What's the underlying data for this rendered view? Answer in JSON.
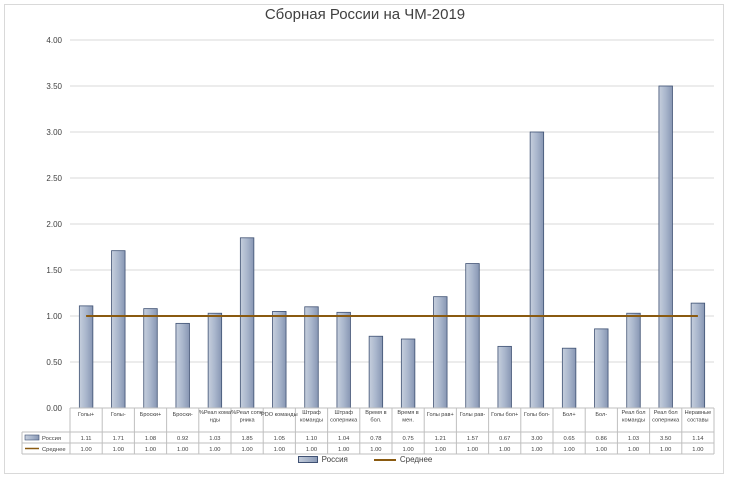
{
  "chart_data": {
    "type": "bar",
    "title": "Сборная России на ЧМ-2019",
    "categories": [
      "Голы+",
      "Голы-",
      "Броски+",
      "Броски-",
      "%Реал кома нды",
      "%Реал сопе рника",
      "PDO команды",
      "Штраф команды",
      "Штраф соперника",
      "Время в бол.",
      "Время в мен.",
      "Голы рав+",
      "Голы рав-",
      "Голы бол+",
      "Голы бол-",
      "Бол+",
      "Бол-",
      "Реал бол команды",
      "Реал бол соперника",
      "Неравные составы"
    ],
    "series": [
      {
        "name": "Россия",
        "type": "bar",
        "values": [
          1.11,
          1.71,
          1.08,
          0.92,
          1.03,
          1.85,
          1.05,
          1.1,
          1.04,
          0.78,
          0.75,
          1.21,
          1.57,
          0.67,
          3.0,
          0.65,
          0.86,
          1.03,
          3.5,
          1.14
        ],
        "labels": [
          "1.11",
          "1.71",
          "1.08",
          "0.92",
          "1.03",
          "1.85",
          "1.05",
          "1.10",
          "1.04",
          "0.78",
          "0.75",
          "1.21",
          "1.57",
          "0.67",
          "3.00",
          "0.65",
          "0.86",
          "1.03",
          "3.50",
          "1.14"
        ]
      },
      {
        "name": "Среднее",
        "type": "line",
        "values": [
          1.0,
          1.0,
          1.0,
          1.0,
          1.0,
          1.0,
          1.0,
          1.0,
          1.0,
          1.0,
          1.0,
          1.0,
          1.0,
          1.0,
          1.0,
          1.0,
          1.0,
          1.0,
          1.0,
          1.0
        ],
        "labels": [
          "1.00",
          "1.00",
          "1.00",
          "1.00",
          "1.00",
          "1.00",
          "1.00",
          "1.00",
          "1.00",
          "1.00",
          "1.00",
          "1.00",
          "1.00",
          "1.00",
          "1.00",
          "1.00",
          "1.00",
          "1.00",
          "1.00",
          "1.00"
        ]
      }
    ],
    "y_ticks": [
      "0.00",
      "0.50",
      "1.00",
      "1.50",
      "2.00",
      "2.50",
      "3.00",
      "3.50",
      "4.00"
    ],
    "ylim": [
      0,
      4
    ],
    "grid": true,
    "legend_position": "bottom",
    "data_table": true,
    "colors": {
      "bar": "#9aa8c2",
      "bar_edge": "#3f5173",
      "line": "#8a5a10",
      "grid": "#d9d9d9",
      "text": "#404040"
    }
  }
}
